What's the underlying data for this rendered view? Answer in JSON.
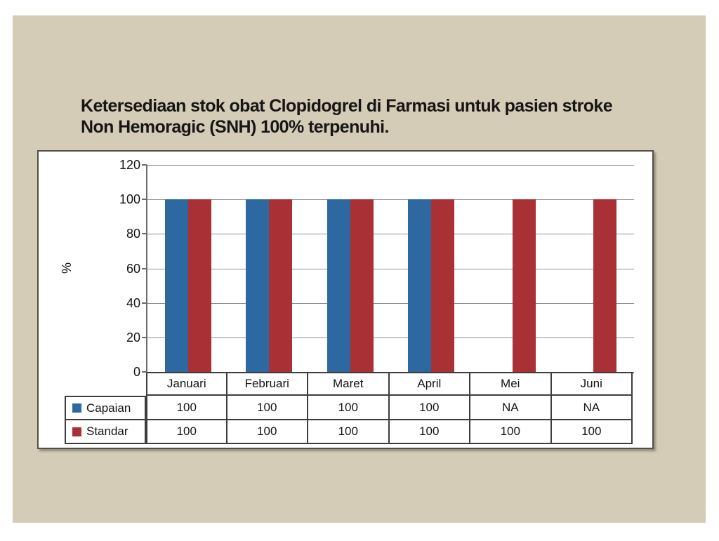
{
  "slide": {
    "title_line1": "Ketersediaan stok obat Clopidogrel di Farmasi untuk pasien stroke",
    "title_line2": "Non Hemoragic (SNH) 100% terpenuhi."
  },
  "colors": {
    "slide_background": "#D4CCB6",
    "capaian_blue": "#2D69A0",
    "standar_red": "#A93034"
  },
  "chart_data": {
    "type": "bar",
    "title": "",
    "xlabel": "",
    "ylabel": "%",
    "ylim": [
      0,
      120
    ],
    "yticks": [
      0,
      20,
      40,
      60,
      80,
      100,
      120
    ],
    "grid": true,
    "legend_position": "table-left",
    "categories": [
      "Januari",
      "Februari",
      "Maret",
      "April",
      "Mei",
      "Juni"
    ],
    "series": [
      {
        "name": "Capaian",
        "color": "#2D69A0",
        "values": [
          100,
          100,
          100,
          100,
          null,
          null
        ],
        "table_values": [
          "100",
          "100",
          "100",
          "100",
          "NA",
          "NA"
        ]
      },
      {
        "name": "Standar",
        "color": "#A93034",
        "values": [
          100,
          100,
          100,
          100,
          100,
          100
        ],
        "table_values": [
          "100",
          "100",
          "100",
          "100",
          "100",
          "100"
        ]
      }
    ]
  }
}
